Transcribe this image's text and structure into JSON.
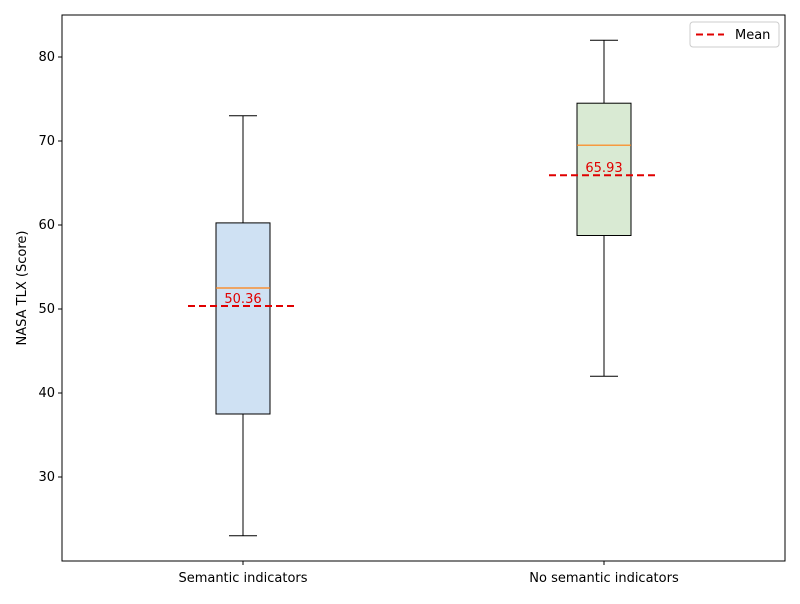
{
  "chart_data": {
    "type": "box",
    "ylabel": "NASA TLX (Score)",
    "xlabel": "",
    "ylim": [
      20,
      85
    ],
    "yticks": [
      30,
      40,
      50,
      60,
      70,
      80
    ],
    "grid": false,
    "legend": {
      "position": "top-right",
      "entries": [
        {
          "label": "Mean",
          "style": "dashed",
          "color": "#e00000"
        }
      ]
    },
    "categories": [
      "Semantic indicators",
      "No semantic indicators"
    ],
    "boxes": [
      {
        "category": "Semantic indicators",
        "whisker_low": 23,
        "q1": 37.5,
        "median": 52.5,
        "q3": 60.25,
        "whisker_high": 73,
        "mean": 50.36,
        "mean_label": "50.36",
        "fill": "#cfe1f3"
      },
      {
        "category": "No semantic indicators",
        "whisker_low": 42,
        "q1": 58.75,
        "median": 69.5,
        "q3": 74.5,
        "whisker_high": 82,
        "mean": 65.93,
        "mean_label": "65.93",
        "fill": "#d9ead3"
      }
    ],
    "colors": {
      "median": "#ff7f0e",
      "mean": "#e00000",
      "box_edge": "#000000"
    }
  }
}
